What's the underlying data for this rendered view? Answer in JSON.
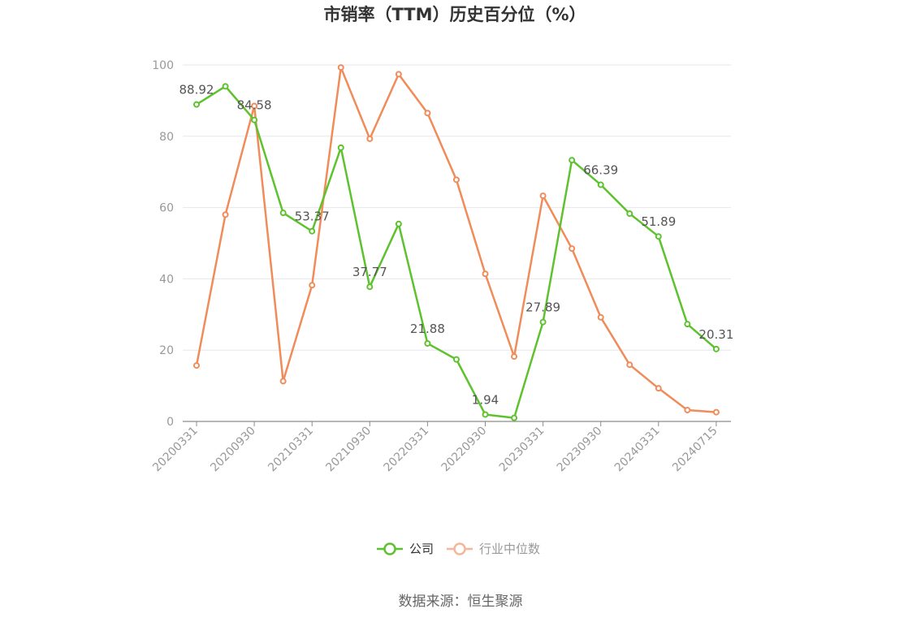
{
  "chart_data": {
    "type": "line",
    "title": "市销率（TTM）历史百分位（%）",
    "x_tick_labels": [
      "20200331",
      "20200930",
      "20210331",
      "20210930",
      "20220331",
      "20220930",
      "20230331",
      "20230930",
      "20240331",
      "20240715"
    ],
    "ylim": [
      0,
      100
    ],
    "y_ticks": [
      0,
      20,
      40,
      60,
      80,
      100
    ],
    "grid": true,
    "legend_position": "bottom-center",
    "series": [
      {
        "name": "公司",
        "color": "#5ec22e",
        "values": [
          88.92,
          94.0,
          84.58,
          58.5,
          53.37,
          76.8,
          37.77,
          55.4,
          21.88,
          17.4,
          1.94,
          1.0,
          27.89,
          73.3,
          66.39,
          58.3,
          51.89,
          27.3,
          20.31
        ],
        "data_labels": [
          {
            "index": 0,
            "text": "88.92"
          },
          {
            "index": 2,
            "text": "84.58"
          },
          {
            "index": 4,
            "text": "53.37"
          },
          {
            "index": 6,
            "text": "37.77"
          },
          {
            "index": 8,
            "text": "21.88"
          },
          {
            "index": 10,
            "text": "1.94"
          },
          {
            "index": 12,
            "text": "27.89"
          },
          {
            "index": 14,
            "text": "66.39"
          },
          {
            "index": 16,
            "text": "51.89"
          },
          {
            "index": 18,
            "text": "20.31"
          }
        ]
      },
      {
        "name": "行业中位数",
        "color": "#f08c5a",
        "values": [
          15.7,
          58.0,
          88.5,
          11.3,
          38.2,
          99.3,
          79.3,
          97.4,
          86.5,
          67.8,
          41.4,
          18.2,
          63.3,
          48.5,
          29.2,
          15.9,
          9.3,
          3.2,
          2.6
        ]
      }
    ]
  },
  "footer": {
    "source": "数据来源：恒生聚源"
  }
}
